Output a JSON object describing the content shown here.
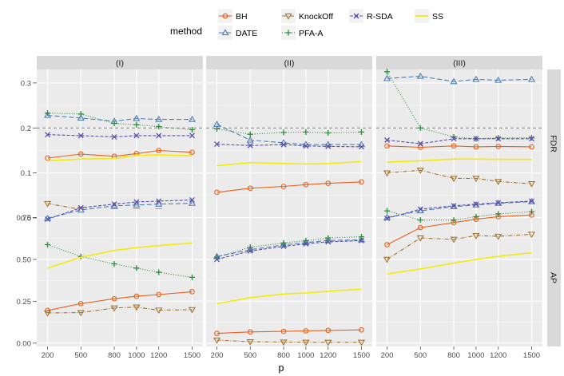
{
  "chart_data": {
    "type": "line",
    "x_title": "p",
    "x": [
      200,
      500,
      800,
      1000,
      1200,
      1500
    ],
    "legend": {
      "title": "method",
      "placement": "top",
      "entries": [
        {
          "name": "BH",
          "color": "#E8601C",
          "marker": "circle",
          "linetype": "solid"
        },
        {
          "name": "DATE",
          "color": "#4C7FB8",
          "marker": "triangle-up",
          "linetype": "longdash"
        },
        {
          "name": "KnockOff",
          "color": "#A3722C",
          "marker": "triangle-down",
          "linetype": "twodash"
        },
        {
          "name": "PFA-A",
          "color": "#2E8B3E",
          "marker": "plus",
          "linetype": "dotted"
        },
        {
          "name": "R-SDA",
          "color": "#5A4FB0",
          "marker": "x",
          "linetype": "dashed"
        },
        {
          "name": "SS",
          "color": "#F5EA0A",
          "marker": "none",
          "linetype": "solid"
        }
      ]
    },
    "columns": [
      "(I)",
      "(II)",
      "(III)"
    ],
    "rows": [
      {
        "label": "FDR",
        "ylim": [
          0,
          0.33
        ],
        "ticks": [
          0.0,
          0.1,
          0.2,
          0.3
        ],
        "tick_labels": [
          "0.0",
          "0.1",
          "0.2",
          "0.3"
        ],
        "hline": 0.2
      },
      {
        "label": "AP",
        "ylim": [
          -0.02,
          0.8
        ],
        "ticks": [
          0.0,
          0.25,
          0.5,
          0.75
        ],
        "tick_labels": [
          "0.00",
          "0.25",
          "0.50",
          "0.75"
        ],
        "hline": null
      }
    ],
    "panels": [
      {
        "row": "FDR",
        "col": "(I)",
        "series": {
          "BH": [
            0.133,
            0.142,
            0.137,
            0.143,
            0.15,
            0.146
          ],
          "DATE": [
            0.228,
            0.222,
            0.215,
            0.221,
            0.219,
            0.219
          ],
          "KnockOff": [
            0.032,
            0.019,
            0.015,
            0.015,
            0.015,
            0.013
          ],
          "PFA-A": [
            0.233,
            0.231,
            0.21,
            0.207,
            0.203,
            0.196
          ],
          "R-SDA": [
            0.185,
            0.183,
            0.18,
            0.183,
            0.183,
            0.183
          ],
          "SS": [
            0.127,
            0.131,
            0.132,
            0.139,
            0.14,
            0.138
          ]
        }
      },
      {
        "row": "FDR",
        "col": "(II)",
        "series": {
          "BH": [
            0.057,
            0.066,
            0.07,
            0.074,
            0.077,
            0.08
          ],
          "DATE": [
            0.208,
            0.173,
            0.167,
            0.163,
            0.163,
            0.163
          ],
          "KnockOff": [
            0.008,
            0.001,
            0.001,
            0.001,
            0.001,
            0.001
          ],
          "PFA-A": [
            0.198,
            0.186,
            0.19,
            0.191,
            0.189,
            0.191
          ],
          "R-SDA": [
            0.164,
            0.161,
            0.163,
            0.16,
            0.159,
            0.158
          ],
          "SS": [
            0.116,
            0.123,
            0.121,
            0.12,
            0.121,
            0.125
          ]
        }
      },
      {
        "row": "FDR",
        "col": "(III)",
        "series": {
          "BH": [
            0.16,
            0.157,
            0.16,
            0.158,
            0.159,
            0.158
          ],
          "DATE": [
            0.31,
            0.315,
            0.303,
            0.308,
            0.306,
            0.308
          ],
          "KnockOff": [
            0.1,
            0.106,
            0.088,
            0.088,
            0.081,
            0.076
          ],
          "PFA-A": [
            0.325,
            0.2,
            0.18,
            0.176,
            0.178,
            0.178
          ],
          "R-SDA": [
            0.173,
            0.165,
            0.176,
            0.176,
            0.176,
            0.176
          ],
          "SS": [
            0.124,
            0.127,
            0.131,
            0.131,
            0.13,
            0.13
          ]
        }
      },
      {
        "row": "AP",
        "col": "(I)",
        "series": {
          "BH": [
            0.195,
            0.236,
            0.265,
            0.28,
            0.29,
            0.307
          ],
          "DATE": [
            0.745,
            0.795,
            0.82,
            0.825,
            0.83,
            0.835
          ],
          "KnockOff": [
            0.18,
            0.182,
            0.21,
            0.215,
            0.197,
            0.2
          ],
          "PFA-A": [
            0.588,
            0.517,
            0.473,
            0.448,
            0.423,
            0.393
          ],
          "R-SDA": [
            0.74,
            0.808,
            0.83,
            0.843,
            0.848,
            0.855
          ],
          "SS": [
            0.447,
            0.513,
            0.553,
            0.57,
            0.582,
            0.598
          ]
        }
      },
      {
        "row": "AP",
        "col": "(II)",
        "series": {
          "BH": [
            0.058,
            0.067,
            0.07,
            0.073,
            0.076,
            0.079
          ],
          "DATE": [
            0.517,
            0.558,
            0.587,
            0.6,
            0.613,
            0.617
          ],
          "KnockOff": [
            0.018,
            0.008,
            0.006,
            0.005,
            0.005,
            0.005
          ],
          "PFA-A": [
            0.513,
            0.573,
            0.598,
            0.612,
            0.628,
            0.635
          ],
          "R-SDA": [
            0.5,
            0.55,
            0.578,
            0.593,
            0.605,
            0.612
          ],
          "SS": [
            0.235,
            0.272,
            0.293,
            0.3,
            0.31,
            0.322
          ]
        }
      },
      {
        "row": "AP",
        "col": "(III)",
        "series": {
          "BH": [
            0.588,
            0.69,
            0.72,
            0.74,
            0.755,
            0.765
          ],
          "DATE": [
            0.75,
            0.79,
            0.815,
            0.825,
            0.835,
            0.845
          ],
          "KnockOff": [
            0.5,
            0.628,
            0.62,
            0.642,
            0.638,
            0.65
          ],
          "PFA-A": [
            0.79,
            0.735,
            0.735,
            0.755,
            0.772,
            0.785
          ],
          "R-SDA": [
            0.745,
            0.8,
            0.82,
            0.83,
            0.838,
            0.848
          ],
          "SS": [
            0.413,
            0.443,
            0.478,
            0.5,
            0.518,
            0.54
          ]
        }
      }
    ]
  }
}
